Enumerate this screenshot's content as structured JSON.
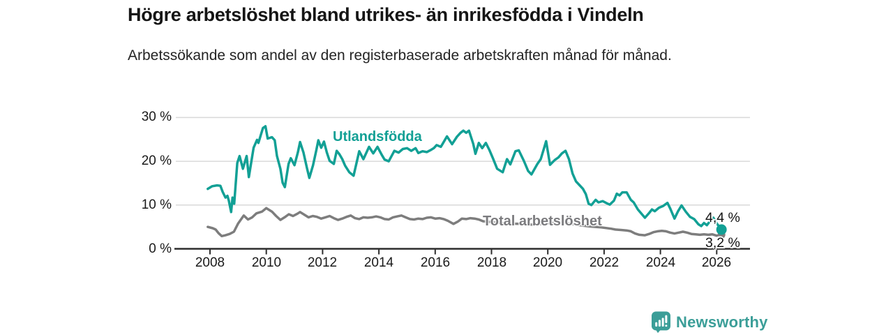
{
  "page": {
    "title": "Högre arbetslöshet bland utrikes- än inrikesfödda i Vindeln",
    "subtitle": "Arbetssökande som andel av den registerbaserade arbetskraften månad för månad."
  },
  "logo": {
    "brand": "Newsworthy",
    "icon": "bar-chart-speech-bubble-icon",
    "color": "#3b9e98"
  },
  "colors": {
    "accent_teal": "#12a095",
    "line_gray": "#7d7d7d",
    "gridline": "#d9d9d9",
    "axis": "#2d2d2d"
  },
  "chart_data": {
    "type": "line",
    "title": "Högre arbetslöshet bland utrikes- än inrikesfödda i Vindeln",
    "subtitle": "Arbetssökande som andel av den registerbaserade arbetskraften månad för månad.",
    "grid": "horizontal-only",
    "x_axis": {
      "ticks": [
        2008,
        2010,
        2012,
        2014,
        2016,
        2018,
        2020,
        2022,
        2024,
        2026
      ],
      "tick_labels": [
        "2008",
        "2010",
        "2012",
        "2014",
        "2016",
        "2018",
        "2020",
        "2022",
        "2024",
        "2026"
      ],
      "range": [
        2006.8,
        2027.2
      ]
    },
    "y_axis": {
      "unit": "%",
      "ticks": [
        0,
        10,
        20,
        30
      ],
      "tick_labels": [
        "0 %",
        "10 %",
        "20 %",
        "30 %"
      ],
      "range": [
        0,
        32
      ]
    },
    "series": [
      {
        "name": "Utlandsfödda",
        "color": "#12a095",
        "end_label": "4,4 %",
        "end_value": 4.4,
        "points": [
          [
            2007.92,
            13.7
          ],
          [
            2008.08,
            14.3
          ],
          [
            2008.25,
            14.5
          ],
          [
            2008.37,
            14.4
          ],
          [
            2008.45,
            13.0
          ],
          [
            2008.55,
            11.7
          ],
          [
            2008.62,
            12.1
          ],
          [
            2008.67,
            11.0
          ],
          [
            2008.75,
            8.4
          ],
          [
            2008.8,
            11.7
          ],
          [
            2008.86,
            10.3
          ],
          [
            2008.97,
            19.6
          ],
          [
            2009.05,
            21.2
          ],
          [
            2009.17,
            18.3
          ],
          [
            2009.3,
            21.2
          ],
          [
            2009.38,
            16.4
          ],
          [
            2009.55,
            23.1
          ],
          [
            2009.67,
            24.9
          ],
          [
            2009.72,
            24.2
          ],
          [
            2009.88,
            27.6
          ],
          [
            2009.97,
            28.0
          ],
          [
            2010.05,
            25.2
          ],
          [
            2010.2,
            25.5
          ],
          [
            2010.3,
            24.8
          ],
          [
            2010.38,
            21.2
          ],
          [
            2010.5,
            18.3
          ],
          [
            2010.58,
            15.1
          ],
          [
            2010.66,
            14.1
          ],
          [
            2010.79,
            19.4
          ],
          [
            2010.87,
            20.7
          ],
          [
            2011.0,
            19.1
          ],
          [
            2011.12,
            22.0
          ],
          [
            2011.2,
            24.4
          ],
          [
            2011.32,
            22.0
          ],
          [
            2011.45,
            18.3
          ],
          [
            2011.53,
            16.2
          ],
          [
            2011.66,
            19.1
          ],
          [
            2011.78,
            22.6
          ],
          [
            2011.85,
            24.8
          ],
          [
            2011.95,
            23.1
          ],
          [
            2012.05,
            24.5
          ],
          [
            2012.15,
            22.0
          ],
          [
            2012.25,
            20.1
          ],
          [
            2012.4,
            19.4
          ],
          [
            2012.5,
            22.4
          ],
          [
            2012.6,
            21.6
          ],
          [
            2012.7,
            20.5
          ],
          [
            2012.8,
            19.0
          ],
          [
            2012.95,
            17.5
          ],
          [
            2013.1,
            16.7
          ],
          [
            2013.3,
            22.3
          ],
          [
            2013.45,
            20.5
          ],
          [
            2013.65,
            23.3
          ],
          [
            2013.8,
            21.8
          ],
          [
            2013.95,
            23.3
          ],
          [
            2014.1,
            21.5
          ],
          [
            2014.2,
            20.4
          ],
          [
            2014.35,
            20.0
          ],
          [
            2014.55,
            22.4
          ],
          [
            2014.7,
            22.0
          ],
          [
            2014.85,
            22.8
          ],
          [
            2015.0,
            23.0
          ],
          [
            2015.15,
            22.4
          ],
          [
            2015.3,
            23.0
          ],
          [
            2015.4,
            21.9
          ],
          [
            2015.55,
            22.3
          ],
          [
            2015.7,
            22.1
          ],
          [
            2015.85,
            22.6
          ],
          [
            2015.95,
            23.0
          ],
          [
            2016.05,
            23.7
          ],
          [
            2016.2,
            23.3
          ],
          [
            2016.42,
            25.7
          ],
          [
            2016.6,
            23.9
          ],
          [
            2016.77,
            25.6
          ],
          [
            2016.9,
            26.5
          ],
          [
            2017.0,
            27.0
          ],
          [
            2017.1,
            26.5
          ],
          [
            2017.2,
            27.0
          ],
          [
            2017.35,
            24.0
          ],
          [
            2017.43,
            21.7
          ],
          [
            2017.55,
            24.2
          ],
          [
            2017.67,
            23.0
          ],
          [
            2017.8,
            24.2
          ],
          [
            2017.93,
            22.5
          ],
          [
            2018.05,
            20.7
          ],
          [
            2018.2,
            18.3
          ],
          [
            2018.4,
            17.5
          ],
          [
            2018.55,
            20.5
          ],
          [
            2018.67,
            19.3
          ],
          [
            2018.85,
            22.3
          ],
          [
            2018.97,
            22.5
          ],
          [
            2019.15,
            20.1
          ],
          [
            2019.3,
            17.8
          ],
          [
            2019.42,
            17.0
          ],
          [
            2019.63,
            19.4
          ],
          [
            2019.75,
            20.5
          ],
          [
            2019.87,
            23.1
          ],
          [
            2019.94,
            24.6
          ],
          [
            2020.08,
            19.2
          ],
          [
            2020.25,
            20.3
          ],
          [
            2020.38,
            20.9
          ],
          [
            2020.5,
            21.8
          ],
          [
            2020.63,
            22.4
          ],
          [
            2020.75,
            20.5
          ],
          [
            2020.88,
            17.2
          ],
          [
            2021.0,
            15.4
          ],
          [
            2021.12,
            14.6
          ],
          [
            2021.25,
            13.7
          ],
          [
            2021.35,
            12.5
          ],
          [
            2021.45,
            10.3
          ],
          [
            2021.55,
            10.0
          ],
          [
            2021.7,
            11.2
          ],
          [
            2021.8,
            10.6
          ],
          [
            2021.95,
            10.9
          ],
          [
            2022.1,
            10.4
          ],
          [
            2022.2,
            10.1
          ],
          [
            2022.35,
            11.0
          ],
          [
            2022.45,
            12.6
          ],
          [
            2022.55,
            12.2
          ],
          [
            2022.65,
            12.9
          ],
          [
            2022.8,
            12.9
          ],
          [
            2022.95,
            11.2
          ],
          [
            2023.05,
            10.6
          ],
          [
            2023.2,
            9.0
          ],
          [
            2023.45,
            7.1
          ],
          [
            2023.6,
            8.2
          ],
          [
            2023.7,
            9.0
          ],
          [
            2023.8,
            8.6
          ],
          [
            2023.95,
            9.4
          ],
          [
            2024.1,
            9.8
          ],
          [
            2024.25,
            10.5
          ],
          [
            2024.35,
            9.2
          ],
          [
            2024.5,
            6.9
          ],
          [
            2024.62,
            8.5
          ],
          [
            2024.75,
            9.9
          ],
          [
            2024.9,
            8.5
          ],
          [
            2025.05,
            7.3
          ],
          [
            2025.2,
            6.8
          ],
          [
            2025.35,
            5.6
          ],
          [
            2025.45,
            5.2
          ],
          [
            2025.55,
            5.9
          ],
          [
            2025.65,
            5.4
          ],
          [
            2025.8,
            6.6
          ],
          [
            2025.88,
            7.1
          ],
          [
            2026.0,
            5.8
          ],
          [
            2026.17,
            4.4
          ]
        ]
      },
      {
        "name": "Total arbetslöshet",
        "color": "#7d7d7d",
        "end_label": "3,2 %",
        "end_value": 3.2,
        "points": [
          [
            2007.92,
            5.0
          ],
          [
            2008.1,
            4.7
          ],
          [
            2008.2,
            4.4
          ],
          [
            2008.3,
            3.6
          ],
          [
            2008.42,
            2.9
          ],
          [
            2008.55,
            3.1
          ],
          [
            2008.7,
            3.4
          ],
          [
            2008.85,
            3.9
          ],
          [
            2009.0,
            5.8
          ],
          [
            2009.2,
            7.6
          ],
          [
            2009.35,
            6.7
          ],
          [
            2009.5,
            7.2
          ],
          [
            2009.65,
            8.1
          ],
          [
            2009.85,
            8.5
          ],
          [
            2010.0,
            9.3
          ],
          [
            2010.2,
            8.5
          ],
          [
            2010.35,
            7.5
          ],
          [
            2010.5,
            6.6
          ],
          [
            2010.65,
            7.2
          ],
          [
            2010.8,
            7.9
          ],
          [
            2010.95,
            7.5
          ],
          [
            2011.1,
            8.0
          ],
          [
            2011.2,
            8.4
          ],
          [
            2011.35,
            7.8
          ],
          [
            2011.5,
            7.2
          ],
          [
            2011.65,
            7.5
          ],
          [
            2011.8,
            7.3
          ],
          [
            2011.95,
            6.9
          ],
          [
            2012.1,
            7.2
          ],
          [
            2012.25,
            7.5
          ],
          [
            2012.4,
            7.0
          ],
          [
            2012.55,
            6.6
          ],
          [
            2012.7,
            6.9
          ],
          [
            2012.85,
            7.3
          ],
          [
            2013.0,
            7.6
          ],
          [
            2013.15,
            7.0
          ],
          [
            2013.3,
            6.8
          ],
          [
            2013.45,
            7.2
          ],
          [
            2013.6,
            7.1
          ],
          [
            2013.75,
            7.2
          ],
          [
            2013.9,
            7.4
          ],
          [
            2014.05,
            7.2
          ],
          [
            2014.2,
            6.8
          ],
          [
            2014.35,
            6.7
          ],
          [
            2014.5,
            7.2
          ],
          [
            2014.65,
            7.4
          ],
          [
            2014.8,
            7.6
          ],
          [
            2014.95,
            7.2
          ],
          [
            2015.1,
            6.8
          ],
          [
            2015.25,
            6.7
          ],
          [
            2015.4,
            6.9
          ],
          [
            2015.55,
            6.8
          ],
          [
            2015.7,
            7.1
          ],
          [
            2015.85,
            7.2
          ],
          [
            2016.0,
            6.9
          ],
          [
            2016.15,
            7.0
          ],
          [
            2016.3,
            6.8
          ],
          [
            2016.45,
            6.4
          ],
          [
            2016.65,
            5.7
          ],
          [
            2016.8,
            6.2
          ],
          [
            2016.95,
            6.9
          ],
          [
            2017.1,
            6.8
          ],
          [
            2017.25,
            7.0
          ],
          [
            2017.4,
            6.9
          ],
          [
            2017.55,
            6.7
          ],
          [
            2017.7,
            6.3
          ],
          [
            2018.0,
            6.1
          ],
          [
            2018.5,
            5.8
          ],
          [
            2019.0,
            5.7
          ],
          [
            2019.5,
            5.5
          ],
          [
            2020.0,
            5.8
          ],
          [
            2020.5,
            6.1
          ],
          [
            2021.0,
            5.5
          ],
          [
            2021.5,
            5.1
          ],
          [
            2021.9,
            4.9
          ],
          [
            2022.25,
            4.6
          ],
          [
            2022.4,
            4.4
          ],
          [
            2022.6,
            4.3
          ],
          [
            2022.8,
            4.2
          ],
          [
            2022.95,
            4.0
          ],
          [
            2023.1,
            3.5
          ],
          [
            2023.25,
            3.2
          ],
          [
            2023.45,
            3.1
          ],
          [
            2023.6,
            3.4
          ],
          [
            2023.75,
            3.8
          ],
          [
            2023.9,
            4.0
          ],
          [
            2024.05,
            4.1
          ],
          [
            2024.2,
            4.0
          ],
          [
            2024.35,
            3.7
          ],
          [
            2024.5,
            3.5
          ],
          [
            2024.65,
            3.7
          ],
          [
            2024.8,
            3.9
          ],
          [
            2024.95,
            3.7
          ],
          [
            2025.1,
            3.4
          ],
          [
            2025.25,
            3.3
          ],
          [
            2025.4,
            3.2
          ],
          [
            2025.55,
            3.3
          ],
          [
            2025.7,
            3.2
          ],
          [
            2025.85,
            3.3
          ],
          [
            2026.0,
            3.0
          ],
          [
            2026.17,
            3.2
          ]
        ]
      }
    ],
    "legend_position": "inline-labels"
  }
}
